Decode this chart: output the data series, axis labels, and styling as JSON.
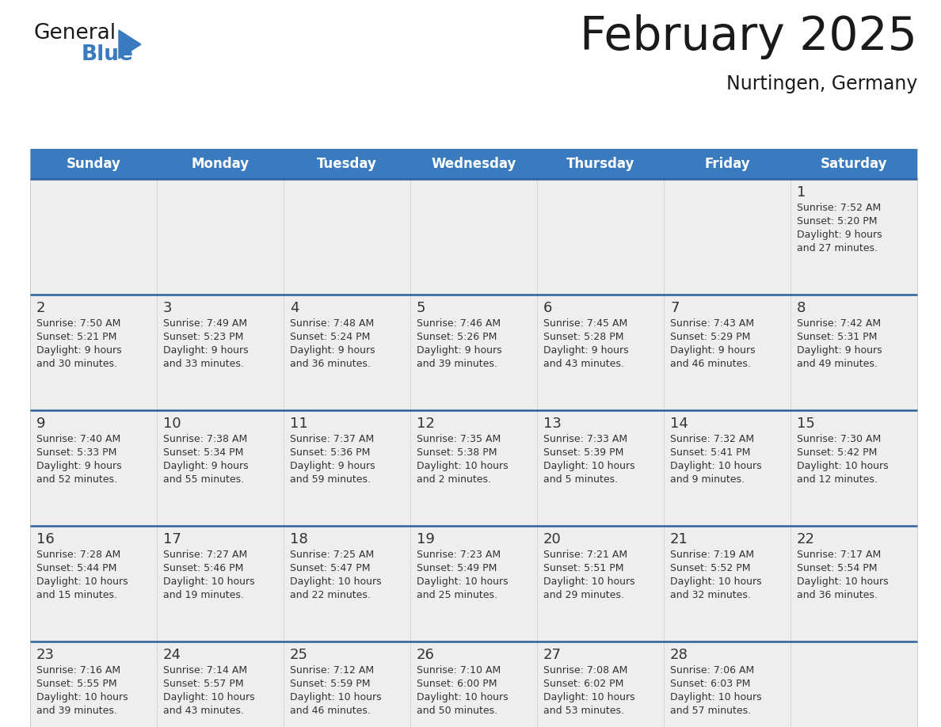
{
  "title": "February 2025",
  "subtitle": "Nurtingen, Germany",
  "header_color": "#3A7BBF",
  "header_text_color": "#FFFFFF",
  "day_names": [
    "Sunday",
    "Monday",
    "Tuesday",
    "Wednesday",
    "Thursday",
    "Friday",
    "Saturday"
  ],
  "cell_bg_color": "#EEEEEE",
  "day_num_color": "#333333",
  "text_color": "#333333",
  "border_color": "#2E5F9E",
  "background_color": "#FFFFFF",
  "calendar": [
    [
      {
        "day": null,
        "sunrise": null,
        "sunset": null,
        "daylight": null
      },
      {
        "day": null,
        "sunrise": null,
        "sunset": null,
        "daylight": null
      },
      {
        "day": null,
        "sunrise": null,
        "sunset": null,
        "daylight": null
      },
      {
        "day": null,
        "sunrise": null,
        "sunset": null,
        "daylight": null
      },
      {
        "day": null,
        "sunrise": null,
        "sunset": null,
        "daylight": null
      },
      {
        "day": null,
        "sunrise": null,
        "sunset": null,
        "daylight": null
      },
      {
        "day": 1,
        "sunrise": "7:52 AM",
        "sunset": "5:20 PM",
        "daylight": "9 hours\nand 27 minutes."
      }
    ],
    [
      {
        "day": 2,
        "sunrise": "7:50 AM",
        "sunset": "5:21 PM",
        "daylight": "9 hours\nand 30 minutes."
      },
      {
        "day": 3,
        "sunrise": "7:49 AM",
        "sunset": "5:23 PM",
        "daylight": "9 hours\nand 33 minutes."
      },
      {
        "day": 4,
        "sunrise": "7:48 AM",
        "sunset": "5:24 PM",
        "daylight": "9 hours\nand 36 minutes."
      },
      {
        "day": 5,
        "sunrise": "7:46 AM",
        "sunset": "5:26 PM",
        "daylight": "9 hours\nand 39 minutes."
      },
      {
        "day": 6,
        "sunrise": "7:45 AM",
        "sunset": "5:28 PM",
        "daylight": "9 hours\nand 43 minutes."
      },
      {
        "day": 7,
        "sunrise": "7:43 AM",
        "sunset": "5:29 PM",
        "daylight": "9 hours\nand 46 minutes."
      },
      {
        "day": 8,
        "sunrise": "7:42 AM",
        "sunset": "5:31 PM",
        "daylight": "9 hours\nand 49 minutes."
      }
    ],
    [
      {
        "day": 9,
        "sunrise": "7:40 AM",
        "sunset": "5:33 PM",
        "daylight": "9 hours\nand 52 minutes."
      },
      {
        "day": 10,
        "sunrise": "7:38 AM",
        "sunset": "5:34 PM",
        "daylight": "9 hours\nand 55 minutes."
      },
      {
        "day": 11,
        "sunrise": "7:37 AM",
        "sunset": "5:36 PM",
        "daylight": "9 hours\nand 59 minutes."
      },
      {
        "day": 12,
        "sunrise": "7:35 AM",
        "sunset": "5:38 PM",
        "daylight": "10 hours\nand 2 minutes."
      },
      {
        "day": 13,
        "sunrise": "7:33 AM",
        "sunset": "5:39 PM",
        "daylight": "10 hours\nand 5 minutes."
      },
      {
        "day": 14,
        "sunrise": "7:32 AM",
        "sunset": "5:41 PM",
        "daylight": "10 hours\nand 9 minutes."
      },
      {
        "day": 15,
        "sunrise": "7:30 AM",
        "sunset": "5:42 PM",
        "daylight": "10 hours\nand 12 minutes."
      }
    ],
    [
      {
        "day": 16,
        "sunrise": "7:28 AM",
        "sunset": "5:44 PM",
        "daylight": "10 hours\nand 15 minutes."
      },
      {
        "day": 17,
        "sunrise": "7:27 AM",
        "sunset": "5:46 PM",
        "daylight": "10 hours\nand 19 minutes."
      },
      {
        "day": 18,
        "sunrise": "7:25 AM",
        "sunset": "5:47 PM",
        "daylight": "10 hours\nand 22 minutes."
      },
      {
        "day": 19,
        "sunrise": "7:23 AM",
        "sunset": "5:49 PM",
        "daylight": "10 hours\nand 25 minutes."
      },
      {
        "day": 20,
        "sunrise": "7:21 AM",
        "sunset": "5:51 PM",
        "daylight": "10 hours\nand 29 minutes."
      },
      {
        "day": 21,
        "sunrise": "7:19 AM",
        "sunset": "5:52 PM",
        "daylight": "10 hours\nand 32 minutes."
      },
      {
        "day": 22,
        "sunrise": "7:17 AM",
        "sunset": "5:54 PM",
        "daylight": "10 hours\nand 36 minutes."
      }
    ],
    [
      {
        "day": 23,
        "sunrise": "7:16 AM",
        "sunset": "5:55 PM",
        "daylight": "10 hours\nand 39 minutes."
      },
      {
        "day": 24,
        "sunrise": "7:14 AM",
        "sunset": "5:57 PM",
        "daylight": "10 hours\nand 43 minutes."
      },
      {
        "day": 25,
        "sunrise": "7:12 AM",
        "sunset": "5:59 PM",
        "daylight": "10 hours\nand 46 minutes."
      },
      {
        "day": 26,
        "sunrise": "7:10 AM",
        "sunset": "6:00 PM",
        "daylight": "10 hours\nand 50 minutes."
      },
      {
        "day": 27,
        "sunrise": "7:08 AM",
        "sunset": "6:02 PM",
        "daylight": "10 hours\nand 53 minutes."
      },
      {
        "day": 28,
        "sunrise": "7:06 AM",
        "sunset": "6:03 PM",
        "daylight": "10 hours\nand 57 minutes."
      },
      {
        "day": null,
        "sunrise": null,
        "sunset": null,
        "daylight": null
      }
    ]
  ]
}
